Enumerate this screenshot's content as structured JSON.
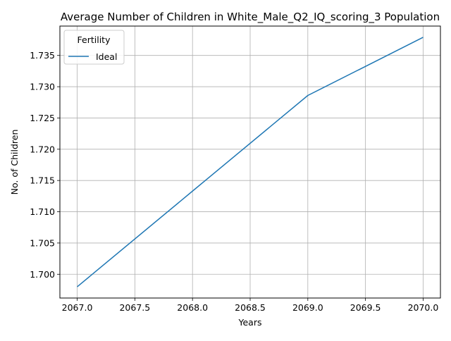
{
  "chart_data": {
    "type": "line",
    "title": "Average Number of Children in White_Male_Q2_IQ_scoring_3 Population",
    "xlabel": "Years",
    "ylabel": "No. of Children",
    "xlim": [
      2066.85,
      2070.15
    ],
    "ylim": [
      1.6962,
      1.7397
    ],
    "xticks": [
      "2067.0",
      "2067.5",
      "2068.0",
      "2068.5",
      "2069.0",
      "2069.5",
      "2070.0"
    ],
    "yticks": [
      "1.700",
      "1.705",
      "1.710",
      "1.715",
      "1.720",
      "1.725",
      "1.730",
      "1.735"
    ],
    "grid": true,
    "legend": {
      "title": "Fertility",
      "placement": "top-left"
    },
    "series": [
      {
        "name": "Ideal",
        "color": "#1f77b4",
        "x": [
          2067,
          2068,
          2069,
          2070
        ],
        "y": [
          1.698,
          1.7133,
          1.7286,
          1.7379
        ]
      }
    ]
  }
}
